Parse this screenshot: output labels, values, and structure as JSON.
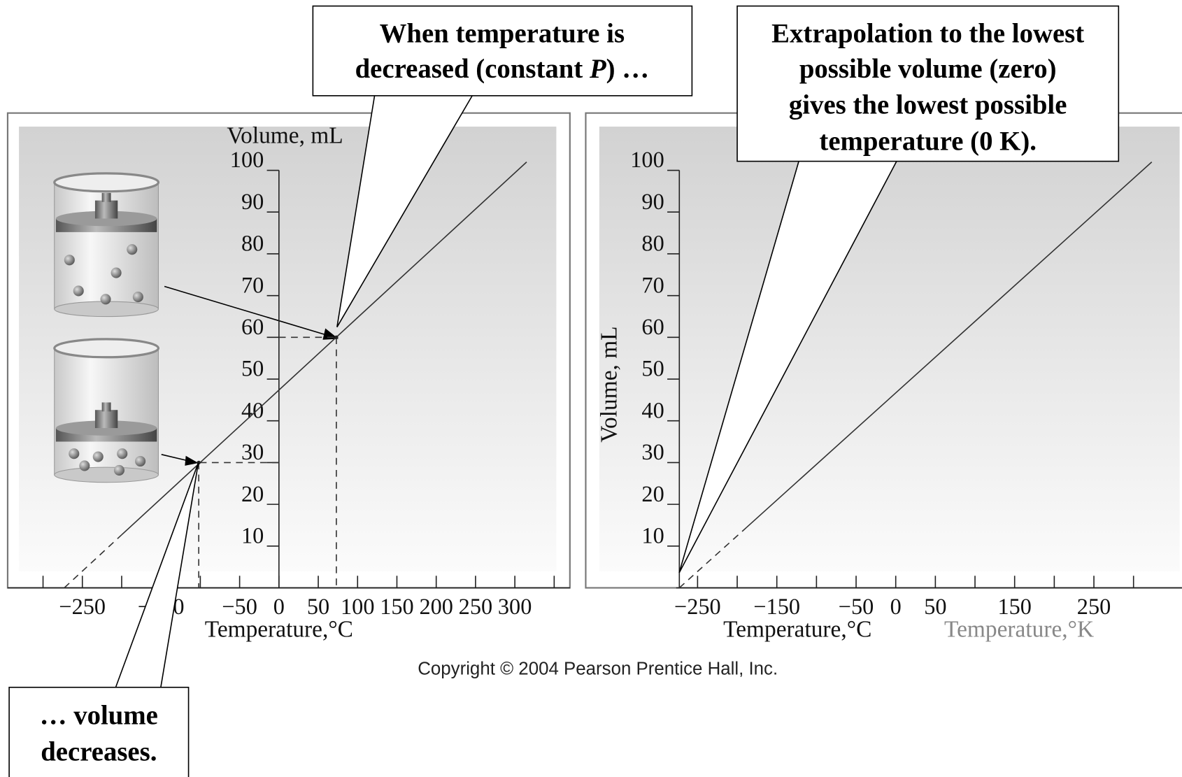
{
  "chart_data": [
    {
      "type": "line",
      "y_label": "Volume, mL",
      "x_label": "Temperature,°C",
      "xlim": [
        -345,
        370
      ],
      "ylim": [
        0,
        100
      ],
      "yaxis_x": 0,
      "yticks": [
        10,
        20,
        30,
        40,
        50,
        60,
        70,
        80,
        90,
        100
      ],
      "xticks": [
        {
          "value": -250,
          "label": "−250"
        },
        {
          "value": -150,
          "label": "−150"
        },
        {
          "value": -50,
          "label": "−50"
        },
        0,
        50,
        100,
        150,
        200,
        250,
        300
      ],
      "xminor_ticks": [
        -300,
        -200,
        -100,
        350
      ],
      "series": [
        {
          "x": [
            -273,
            -200
          ],
          "values": [
            0,
            12.7
          ],
          "dashed": true,
          "color": "#333333"
        },
        {
          "x": [
            -200,
            315
          ],
          "values": [
            12.7,
            102
          ],
          "dashed": false,
          "color": "#333333"
        }
      ],
      "points": {
        "x": [
          -102,
          73
        ],
        "values": [
          30,
          60
        ]
      }
    },
    {
      "type": "line",
      "y_label": "Volume, mL",
      "x_label": "Temperature,°C",
      "x_label2": "Temperature,°K",
      "xlim": [
        -277,
        361
      ],
      "ylim": [
        0,
        100
      ],
      "yaxis_x": -273,
      "yticks": [
        10,
        20,
        30,
        40,
        50,
        60,
        70,
        80,
        90,
        100
      ],
      "xticks": [
        {
          "value": -250,
          "label": "−250"
        },
        {
          "value": -150,
          "label": "−150"
        },
        {
          "value": -50,
          "label": "−50"
        },
        0,
        50,
        150,
        250
      ],
      "xminor_ticks": [
        -200,
        -100,
        100,
        200,
        300
      ],
      "series": [
        {
          "x": [
            -273,
            -188
          ],
          "values": [
            0,
            14.5
          ],
          "dashed": true,
          "color": "#333333"
        },
        {
          "x": [
            -188,
            323
          ],
          "values": [
            14.5,
            102
          ],
          "dashed": false,
          "color": "#333333"
        }
      ]
    }
  ],
  "callouts": [
    {
      "lines": [
        "When temperature is",
        [
          "decreased (constant ",
          "P",
          ") …"
        ]
      ]
    },
    {
      "lines": [
        "Extrapolation to the lowest",
        "possible volume (zero)",
        "gives the lowest possible",
        "temperature (0 K)."
      ]
    },
    {
      "lines": [
        "… volume",
        "decreases."
      ]
    }
  ],
  "copyright": "Copyright © 2004 Pearson Prentice Hall, Inc."
}
